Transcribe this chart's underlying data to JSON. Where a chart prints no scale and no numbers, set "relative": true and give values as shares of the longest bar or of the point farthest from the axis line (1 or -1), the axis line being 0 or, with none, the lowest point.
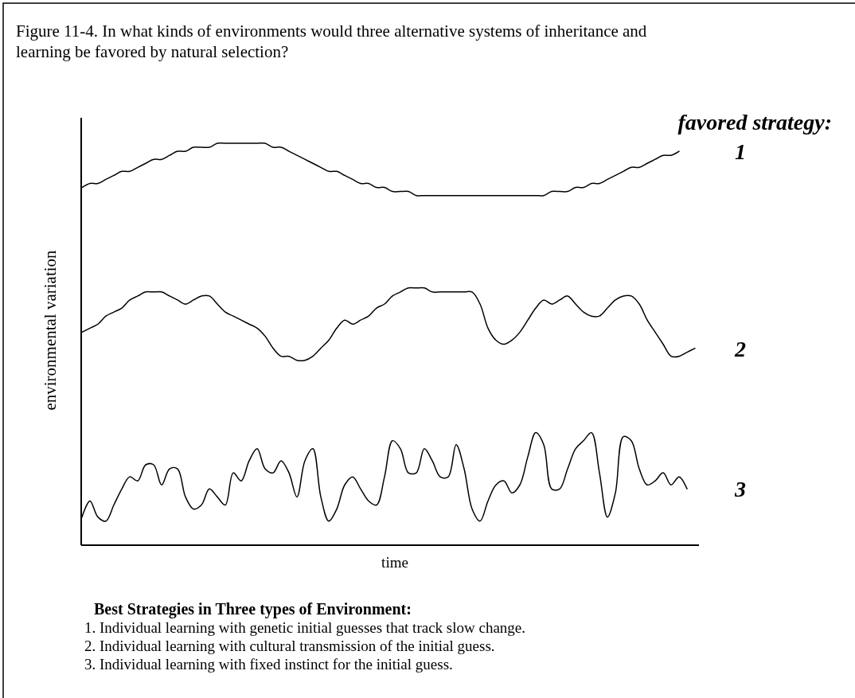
{
  "chart_data": {
    "type": "line",
    "relative": true,
    "title": "Figure 11-4. In what kinds of environments would three alternative systems of inheritance and learning be favored by natural selection?",
    "xlabel": "time",
    "ylabel": "environmental variation",
    "legend_title": "favored strategy:",
    "categories": [
      null,
      null,
      null,
      null,
      null,
      null,
      null,
      null,
      null,
      null,
      null,
      null,
      null,
      null,
      null,
      null,
      null,
      null,
      null,
      null,
      null,
      null,
      null,
      null,
      null,
      null,
      null,
      null,
      null,
      null,
      null,
      null,
      null,
      null,
      null,
      null,
      null,
      null,
      null,
      null,
      null,
      null,
      null,
      null,
      null,
      null,
      null,
      null,
      null,
      null,
      null,
      null,
      null,
      null,
      null,
      null,
      null,
      null,
      null,
      null,
      null,
      null,
      null,
      null,
      null,
      null,
      null,
      null,
      null,
      null,
      null,
      null,
      null,
      null,
      null,
      null,
      null,
      null
    ],
    "series": [
      {
        "name": "1",
        "color": "#000000",
        "values": [
          0.89,
          0.9,
          0.9,
          0.91,
          0.92,
          0.93,
          0.93,
          0.94,
          0.95,
          0.96,
          0.96,
          0.97,
          0.98,
          0.98,
          0.99,
          0.99,
          0.99,
          1.0,
          1.0,
          1.0,
          1.0,
          1.0,
          1.0,
          1.0,
          0.99,
          0.99,
          0.98,
          0.97,
          0.96,
          0.95,
          0.94,
          0.93,
          0.93,
          0.92,
          0.91,
          0.9,
          0.9,
          0.89,
          0.89,
          0.88,
          0.88,
          0.88,
          0.87,
          0.87,
          0.87,
          0.87,
          0.87,
          0.87,
          0.87,
          0.87,
          0.87,
          0.87,
          0.87,
          0.87,
          0.87,
          0.87,
          0.87,
          0.87,
          0.87,
          0.88,
          0.88,
          0.88,
          0.89,
          0.89,
          0.9,
          0.9,
          0.91,
          0.92,
          0.93,
          0.94,
          0.94,
          0.95,
          0.96,
          0.97,
          0.97,
          0.98,
          null,
          null
        ]
      },
      {
        "name": "2",
        "color": "#000000",
        "values": [
          0.53,
          0.54,
          0.55,
          0.57,
          0.58,
          0.59,
          0.61,
          0.62,
          0.63,
          0.63,
          0.63,
          0.62,
          0.61,
          0.6,
          0.61,
          0.62,
          0.62,
          0.6,
          0.58,
          0.57,
          0.56,
          0.55,
          0.54,
          0.52,
          0.49,
          0.47,
          0.47,
          0.46,
          0.46,
          0.47,
          0.49,
          0.51,
          0.54,
          0.56,
          0.55,
          0.56,
          0.57,
          0.59,
          0.6,
          0.62,
          0.63,
          0.64,
          0.64,
          0.64,
          0.63,
          0.63,
          0.63,
          0.63,
          0.63,
          0.63,
          0.6,
          0.54,
          0.51,
          0.5,
          0.51,
          0.53,
          0.56,
          0.59,
          0.61,
          0.6,
          0.61,
          0.62,
          0.6,
          0.58,
          0.57,
          0.57,
          0.59,
          0.61,
          0.62,
          0.62,
          0.6,
          0.56,
          0.53,
          0.5,
          0.47,
          0.47,
          0.48,
          0.49
        ]
      },
      {
        "name": "3",
        "color": "#000000",
        "values": [
          0.07,
          0.11,
          0.07,
          0.06,
          0.1,
          0.14,
          0.17,
          0.16,
          0.2,
          0.2,
          0.15,
          0.19,
          0.19,
          0.12,
          0.09,
          0.1,
          0.14,
          0.12,
          0.1,
          0.18,
          0.16,
          0.21,
          0.24,
          0.19,
          0.18,
          0.21,
          0.18,
          0.12,
          0.21,
          0.24,
          0.12,
          0.06,
          0.09,
          0.15,
          0.17,
          0.14,
          0.11,
          0.1,
          0.17,
          0.26,
          0.24,
          0.18,
          0.18,
          0.24,
          0.21,
          0.17,
          0.17,
          0.25,
          0.19,
          0.09,
          0.06,
          0.11,
          0.15,
          0.16,
          0.13,
          0.15,
          0.22,
          0.28,
          0.25,
          0.14,
          0.14,
          0.19,
          0.24,
          0.26,
          0.28,
          0.18,
          0.07,
          0.13,
          0.27,
          0.26,
          0.19,
          0.15,
          0.16,
          0.18,
          0.15,
          0.17,
          0.14,
          null
        ]
      }
    ],
    "annotations": [
      "Best Strategies in Three types of Environment:",
      "1. Individual learning with genetic initial guesses that track slow change.",
      "2. Individual learning with cultural transmission of the initial guess.",
      "3. Individual learning with fixed instinct for the initial guess."
    ]
  }
}
